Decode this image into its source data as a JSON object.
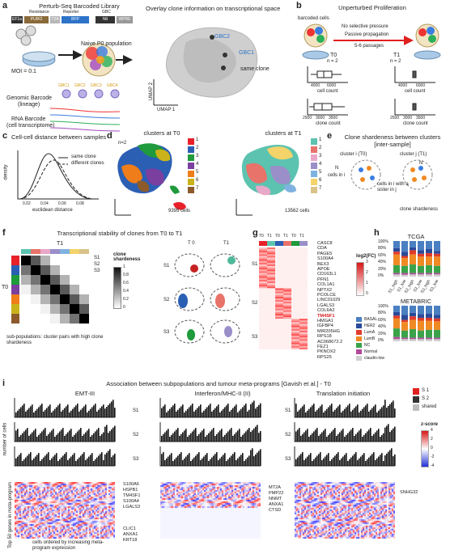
{
  "panel_a": {
    "label": "a",
    "title": "Perturb-Seq Barcoded Library",
    "vector_labels": [
      "EF1a",
      "PURO",
      "T2A",
      "BFP",
      "Nlt",
      "WPRE"
    ],
    "vector_header": [
      "Resistance",
      "Reporter",
      "GBC"
    ],
    "p0_label": "Naive P0 population",
    "moi": "MOI = 0.1",
    "genomic_title": "Genomic Barcode",
    "genomic_sub": "(lineage)",
    "rna_title": "RNA Barcode",
    "rna_sub": "(cell transcriptome)",
    "gbcs": [
      "GBC1",
      "GBC2",
      "GBC3",
      "GBC4"
    ],
    "overlay_title": "Overlay clone information on transcriptional space",
    "gbc2": "GBC2",
    "gbc1": "GBC1",
    "same_clone": "same clone",
    "umap1": "UMAP 1",
    "umap2": "UMAP 2"
  },
  "panel_b": {
    "label": "b",
    "title": "Unperturbed Proliferation",
    "barcoded": "barcoded\ncells",
    "arrow_top": "No selective pressure",
    "arrow_mid": "Passive propagation",
    "arrow_bot": "5-6 passages",
    "t0": "T0",
    "t0n": "n = 2",
    "t1": "T1",
    "t1n": "n = 2",
    "cell_count": "cell count",
    "clone_count": "clone count",
    "ticks_cell_t0": [
      "4000",
      "6000"
    ],
    "ticks_clone_t0": [
      "2500",
      "3000",
      "3500"
    ],
    "ticks_cell_t1": [
      "4000",
      "6000"
    ],
    "ticks_clone_t1": [
      "2500",
      "3000",
      "3500"
    ]
  },
  "panel_c": {
    "label": "c",
    "title": "Cell-cell distance between samples",
    "legend_same": "same clone",
    "legend_diff": "different clones",
    "ylabel": "density",
    "xlabel": "euclidean distance",
    "xticks": [
      "0.02",
      "0.04",
      "0.06",
      "0.08"
    ]
  },
  "panel_d": {
    "label": "d",
    "title_t0": "clusters at T0",
    "title_t1": "clusters at T1",
    "n": "n=2",
    "cells_t0": "9395 cells",
    "cells_t1": "13562 cells",
    "clusters": [
      "1",
      "2",
      "3",
      "4",
      "5",
      "6",
      "7"
    ],
    "colors_t0": [
      "#e8202a",
      "#2b5fb4",
      "#1f9a3c",
      "#7b3fa0",
      "#ef7d1a",
      "#c9b21a",
      "#8c5a2b"
    ],
    "colors_t1": [
      "#5cc3b0",
      "#e8736a",
      "#e9a8c8",
      "#9a8fc9",
      "#7fb2e0",
      "#f3d36a",
      "#d9c389"
    ]
  },
  "panel_e": {
    "label": "e",
    "title": "Clone shardeness between clusters [inter-sample]",
    "cluster_i": "cluster i (T0)",
    "cluster_j": "cluster j (T1)",
    "ni": "N",
    "nj": "N",
    "cells_in_i": "cells in i",
    "sister": "cells in i with a sister in j",
    "formula": "clone shardeness"
  },
  "panel_f": {
    "label": "f",
    "title": "Transcriptional stability of clones from T0 to T1",
    "t1": "T1",
    "t0": "T0",
    "s_labels": [
      "S1",
      "S2",
      "S3"
    ],
    "cbar_title": "clone shardeness",
    "cbar_ticks": [
      "1",
      "0.8",
      "0.6",
      "0.4",
      "0.2",
      "0"
    ],
    "sub_pop": "sub-populations: cluster pairs with high clone shardeness",
    "col_t0": "T 0",
    "col_t1": "T1"
  },
  "panel_g": {
    "label": "g",
    "cols": [
      "T0",
      "T1",
      "T0",
      "T1",
      "T0",
      "T1"
    ],
    "s_labels": [
      "S1",
      "S2",
      "S3"
    ],
    "genes": [
      "CASC8",
      "CDA",
      "PAGE5",
      "S100A4",
      "BEX3",
      "APOE",
      "CD163L1",
      "PFN1",
      "COL1A1",
      "NPTX2",
      "PCOLCE",
      "LINC01029",
      "LGALS3",
      "COL6A2",
      "TM4SF1",
      "HMGA1",
      "IGFBP4",
      "MIR205HG",
      "RPS18",
      "AC068672.2",
      "FEZ1",
      "PKNOX2",
      "RPS25"
    ],
    "highlight": "TM4SF1",
    "cbar_title": "log2(FC)",
    "cbar_ticks": [
      "3",
      "2",
      "1",
      "0"
    ],
    "legend": [
      "BASAL",
      "HER2",
      "LumA",
      "LumB",
      "NC",
      "Normal",
      "claudin-low"
    ],
    "legend_colors": [
      "#4a7fc1",
      "#2a4a9a",
      "#e03b2b",
      "#f08a24",
      "#3aa34a",
      "#b04a9a",
      "#cfcfcf"
    ]
  },
  "panel_h": {
    "label": "h",
    "tcga": "TCGA",
    "metabric": "METABRIC",
    "yticks": [
      "100%",
      "80%",
      "60%",
      "40%",
      "20%",
      "0%"
    ],
    "xlabels": [
      "S1_high",
      "S1_low",
      "S2_high",
      "S2_low",
      "S3_high",
      "S3_low"
    ]
  },
  "panel_i": {
    "label": "i",
    "title": "Association between subpopulations and tumour meta-programs [Gavish et al.] - T0",
    "programs": [
      "EMT-III",
      "Interferon/MHC-II (II)",
      "Translation initiation"
    ],
    "ylabel_top": "number of cells",
    "ylabel_bot": "Top 50 genes in meta-program",
    "s_labels": [
      "S1",
      "S2",
      "S3"
    ],
    "genes_emt": [
      "S100A6",
      "HSPB1",
      "TM4SF1",
      "S100A4",
      "LGALS3",
      "CLIC1",
      "ANXA1",
      "KRT18"
    ],
    "genes_ifn": [
      "MT2A",
      "PMP22",
      "NNMT",
      "ANXA1",
      "CTSD"
    ],
    "genes_tr": [
      "SNHG32"
    ],
    "xlabel": "cells ordered by increasing meta-program expression",
    "legend": [
      "S 1",
      "S 2",
      "shared"
    ],
    "legend_colors": [
      "#e02020",
      "#333333",
      "#bdbdbd"
    ],
    "zscore": "z-score",
    "z_ticks": [
      "4",
      "2",
      "0",
      "-2",
      "-4"
    ]
  }
}
